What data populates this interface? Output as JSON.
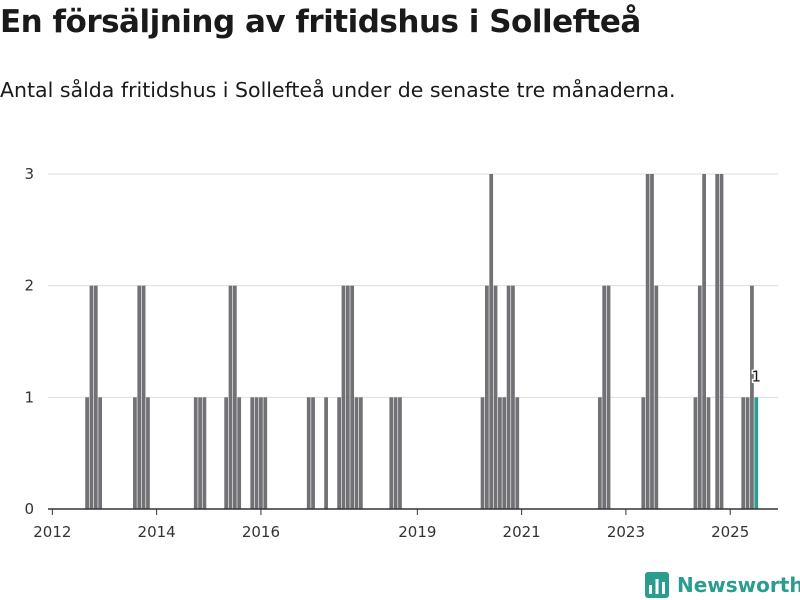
{
  "title": "En försäljning av fritidshus i Sollefteå",
  "subtitle": "Antal sålda fritidshus i Sollefteå under de senaste tre månaderna.",
  "brand": {
    "name": "Newsworthy",
    "icon": "bar-chart-logo-icon",
    "color": "#2a9d8f"
  },
  "colors": {
    "bar": "#727176",
    "highlight": "#2a9d8f",
    "grid": "#dddddd",
    "axis": "#333333"
  },
  "chart_data": {
    "type": "bar",
    "title": "",
    "xlabel": "",
    "ylabel": "",
    "ylim": [
      0,
      3
    ],
    "yticks": [
      0,
      1,
      2,
      3
    ],
    "xlim": [
      "2011-12",
      "2025-12"
    ],
    "xticks": [
      "2012",
      "2014",
      "2016",
      "2019",
      "2021",
      "2023",
      "2025"
    ],
    "grid": true,
    "legend": "none",
    "highlight_label": "1",
    "series": [
      {
        "values": [
          [
            "2012-09",
            1
          ],
          [
            "2012-10",
            2
          ],
          [
            "2012-11",
            2
          ],
          [
            "2012-12",
            1
          ],
          [
            "2013-08",
            1
          ],
          [
            "2013-09",
            2
          ],
          [
            "2013-10",
            2
          ],
          [
            "2013-11",
            1
          ],
          [
            "2014-10",
            1
          ],
          [
            "2014-11",
            1
          ],
          [
            "2014-12",
            1
          ],
          [
            "2015-05",
            1
          ],
          [
            "2015-06",
            2
          ],
          [
            "2015-07",
            2
          ],
          [
            "2015-08",
            1
          ],
          [
            "2015-11",
            1
          ],
          [
            "2015-12",
            1
          ],
          [
            "2016-01",
            1
          ],
          [
            "2016-02",
            1
          ],
          [
            "2016-12",
            1
          ],
          [
            "2017-01",
            1
          ],
          [
            "2017-04",
            1
          ],
          [
            "2017-07",
            1
          ],
          [
            "2017-08",
            2
          ],
          [
            "2017-09",
            2
          ],
          [
            "2017-10",
            2
          ],
          [
            "2017-11",
            1
          ],
          [
            "2017-12",
            1
          ],
          [
            "2018-07",
            1
          ],
          [
            "2018-08",
            1
          ],
          [
            "2018-09",
            1
          ],
          [
            "2020-04",
            1
          ],
          [
            "2020-05",
            2
          ],
          [
            "2020-06",
            3
          ],
          [
            "2020-07",
            2
          ],
          [
            "2020-08",
            1
          ],
          [
            "2020-09",
            1
          ],
          [
            "2020-10",
            2
          ],
          [
            "2020-11",
            2
          ],
          [
            "2020-12",
            1
          ],
          [
            "2022-07",
            1
          ],
          [
            "2022-08",
            2
          ],
          [
            "2022-09",
            2
          ],
          [
            "2023-05",
            1
          ],
          [
            "2023-06",
            3
          ],
          [
            "2023-07",
            3
          ],
          [
            "2023-08",
            2
          ],
          [
            "2024-05",
            1
          ],
          [
            "2024-06",
            2
          ],
          [
            "2024-07",
            3
          ],
          [
            "2024-08",
            1
          ],
          [
            "2024-10",
            3
          ],
          [
            "2024-11",
            3
          ],
          [
            "2025-04",
            1
          ],
          [
            "2025-05",
            1
          ],
          [
            "2025-06",
            2
          ],
          [
            "2025-07",
            1
          ]
        ]
      }
    ]
  }
}
